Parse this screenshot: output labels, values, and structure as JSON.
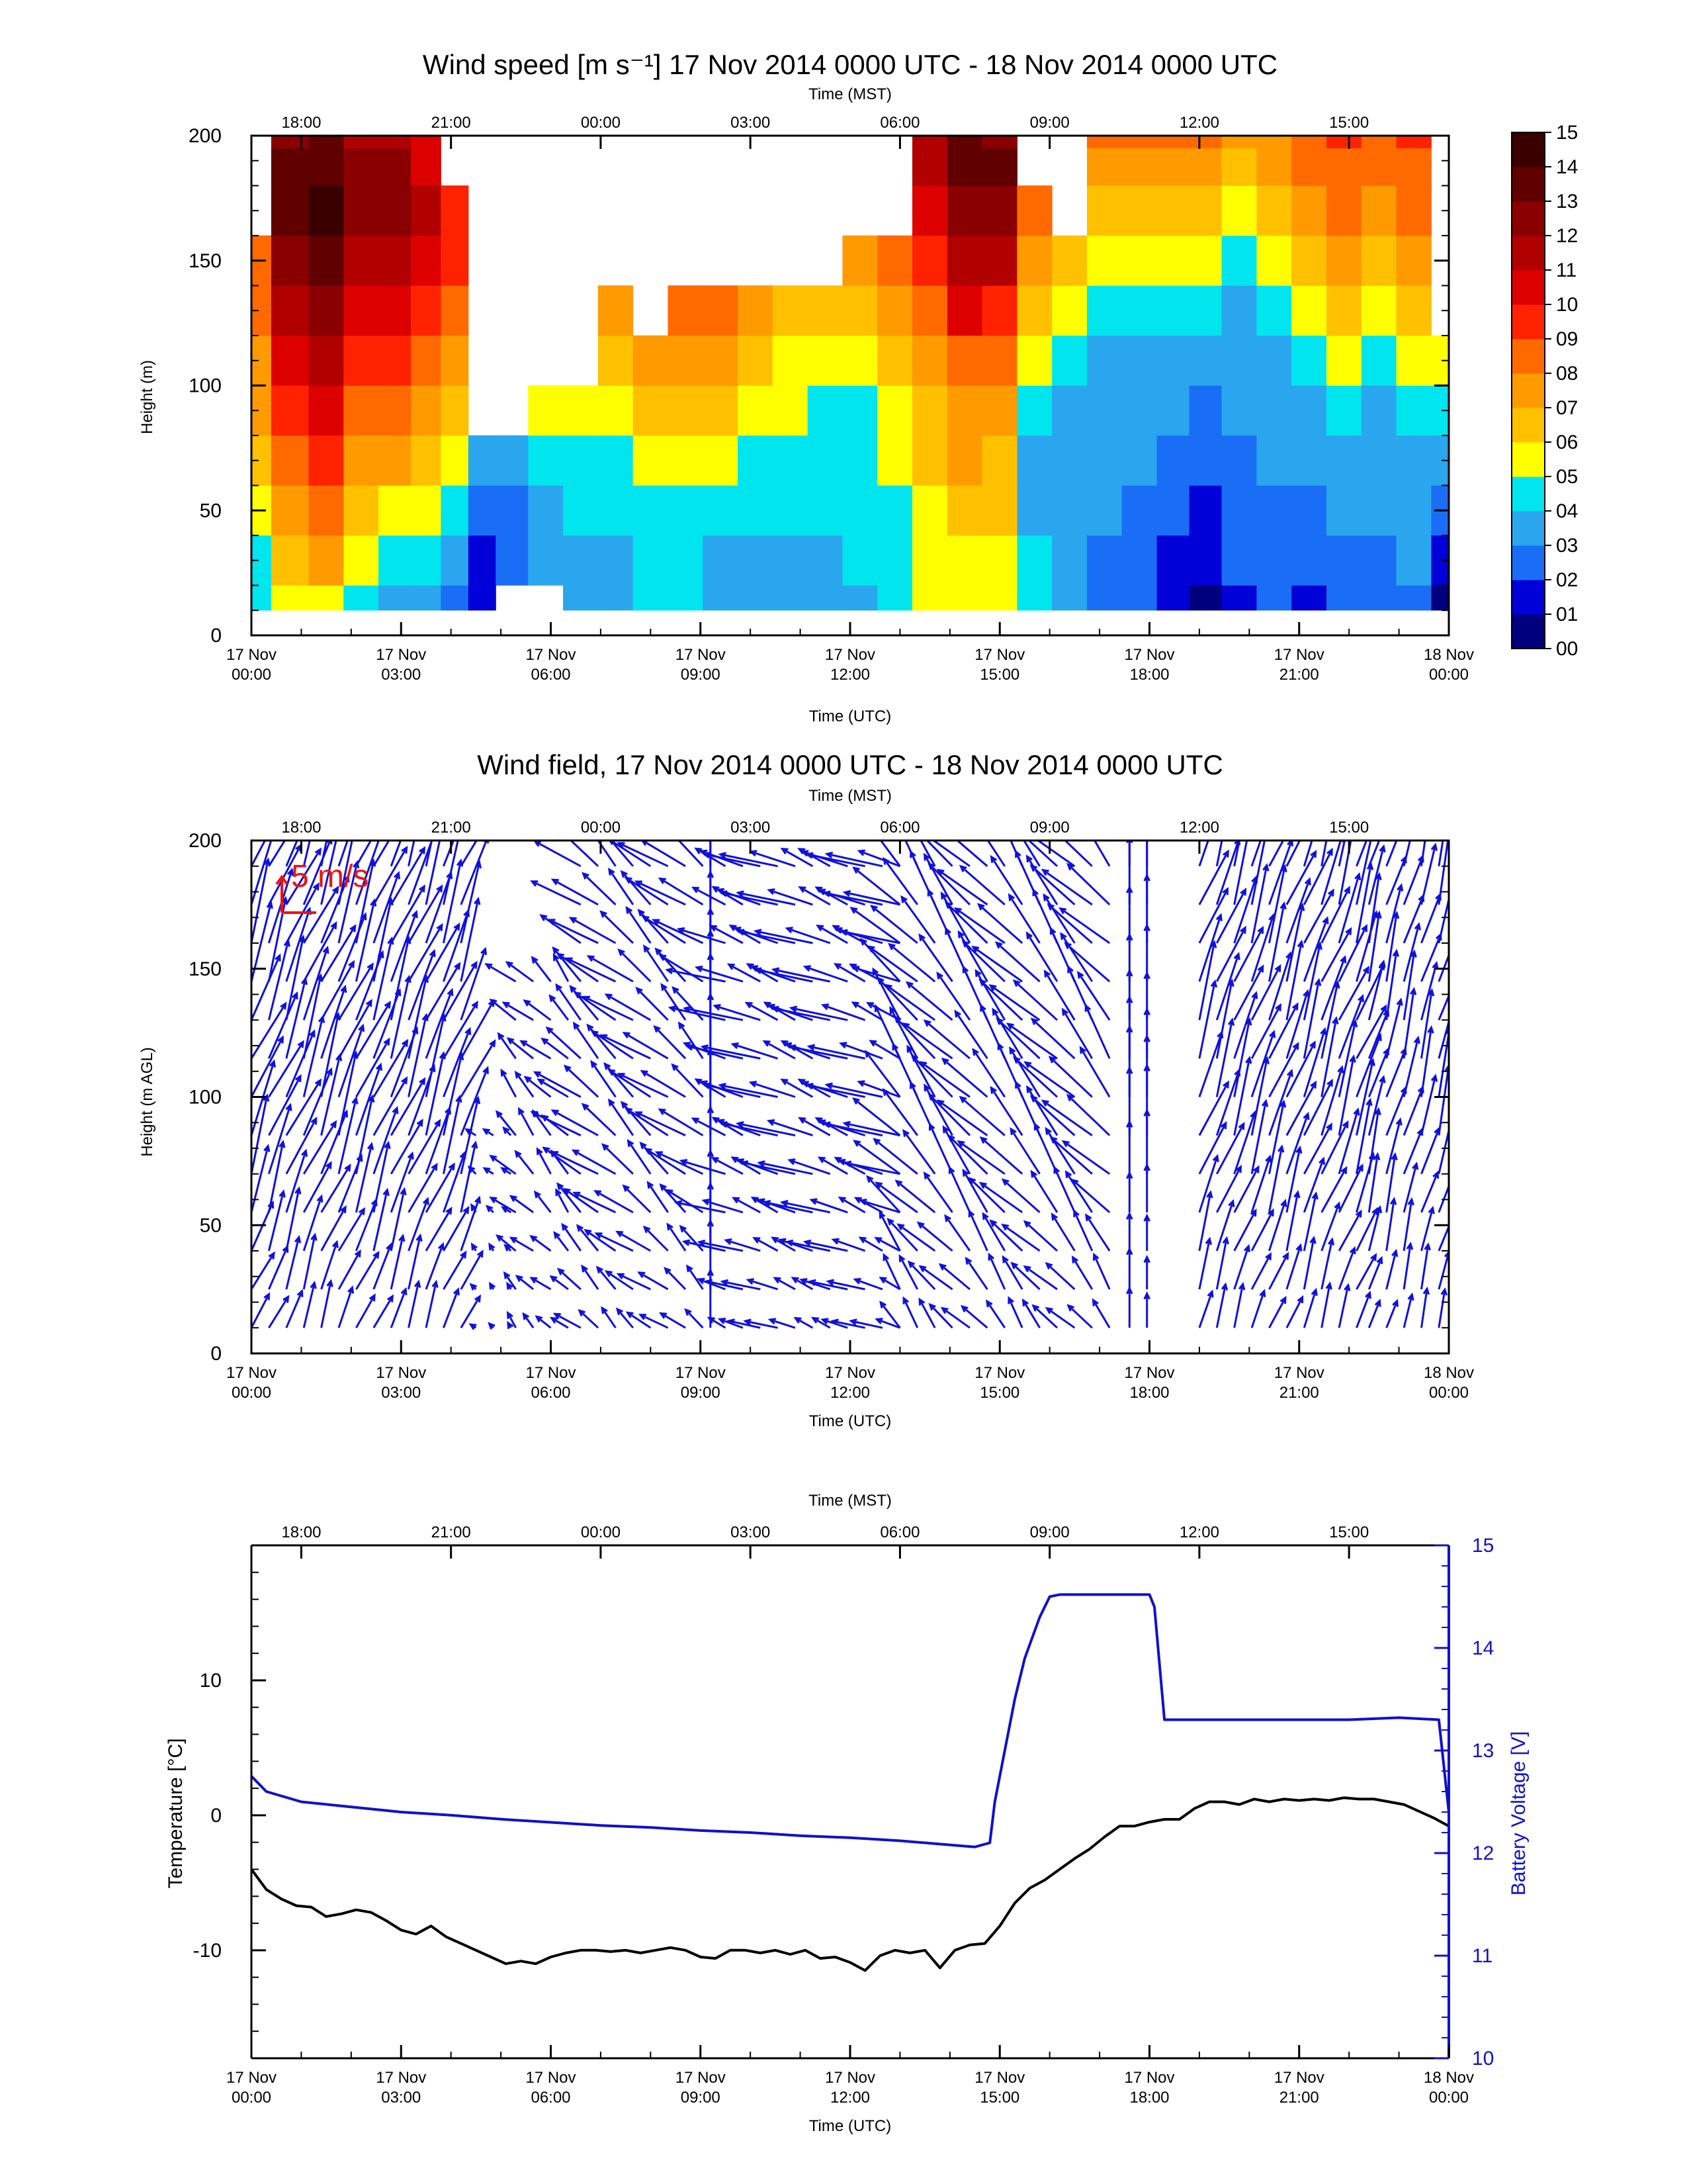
{
  "panels": {
    "speed": {
      "title": "Wind speed [m s⁻¹] 17 Nov 2014 0000 UTC - 18 Nov 2014 0000 UTC",
      "top_axis_label": "Time (MST)",
      "bottom_axis_label": "Time (UTC)",
      "ylabel": "Height (m)"
    },
    "field": {
      "title": "Wind field, 17 Nov 2014 0000 UTC - 18 Nov 2014 0000 UTC",
      "top_axis_label": "Time (MST)",
      "bottom_axis_label": "Time (UTC)",
      "ylabel": "Height (m AGL)",
      "scale_label": "5 m/s"
    },
    "temp": {
      "top_axis_label": "Time (MST)",
      "bottom_axis_label": "Time (UTC)",
      "ylabel_left": "Temperature [°C]",
      "ylabel_right": "Battery Voltage [V]"
    }
  },
  "x_axis": {
    "range_hours_utc": [
      0,
      24
    ],
    "utc_ticks": [
      {
        "h": 0,
        "l1": "17 Nov",
        "l2": "00:00"
      },
      {
        "h": 3,
        "l1": "17 Nov",
        "l2": "03:00"
      },
      {
        "h": 6,
        "l1": "17 Nov",
        "l2": "06:00"
      },
      {
        "h": 9,
        "l1": "17 Nov",
        "l2": "09:00"
      },
      {
        "h": 12,
        "l1": "17 Nov",
        "l2": "12:00"
      },
      {
        "h": 15,
        "l1": "17 Nov",
        "l2": "15:00"
      },
      {
        "h": 18,
        "l1": "17 Nov",
        "l2": "18:00"
      },
      {
        "h": 21,
        "l1": "17 Nov",
        "l2": "21:00"
      },
      {
        "h": 24,
        "l1": "18 Nov",
        "l2": "00:00"
      }
    ],
    "mst_ticks": [
      {
        "h": 1,
        "label": "18:00"
      },
      {
        "h": 4,
        "label": "21:00"
      },
      {
        "h": 7,
        "label": "00:00"
      },
      {
        "h": 10,
        "label": "03:00"
      },
      {
        "h": 13,
        "label": "06:00"
      },
      {
        "h": 16,
        "label": "09:00"
      },
      {
        "h": 19,
        "label": "12:00"
      },
      {
        "h": 22,
        "label": "15:00"
      }
    ]
  },
  "chart_data": [
    {
      "type": "heatmap",
      "panel": "speed",
      "y_ticks": [
        0,
        50,
        100,
        150,
        200
      ],
      "ylim": [
        0,
        200
      ],
      "colorbar": {
        "labels": [
          "00",
          "01",
          "02",
          "03",
          "04",
          "05",
          "06",
          "07",
          "08",
          "09",
          "10",
          "11",
          "12",
          "13",
          "14",
          "15"
        ],
        "colors": [
          "#00007f",
          "#0000d8",
          "#1a6ef5",
          "#2aa6ee",
          "#00e5ee",
          "#ffff00",
          "#ffc000",
          "#ff9a00",
          "#ff6a00",
          "#ff2200",
          "#dd0000",
          "#b00000",
          "#8a0000",
          "#600000",
          "#3a0000"
        ]
      },
      "height_levels_m": [
        10,
        30,
        50,
        70,
        90,
        110,
        130,
        150,
        170,
        190,
        200
      ],
      "columns": [
        {
          "t": 0.0,
          "v": [
            4,
            4,
            5,
            6,
            7,
            7,
            8,
            8,
            null,
            null,
            null
          ]
        },
        {
          "t": 0.8,
          "v": [
            5,
            6,
            7,
            8,
            9,
            10,
            11,
            12,
            13,
            13,
            12
          ]
        },
        {
          "t": 1.5,
          "v": [
            5,
            7,
            8,
            9,
            10,
            11,
            12,
            13,
            14,
            13,
            13
          ]
        },
        {
          "t": 2.2,
          "v": [
            4,
            5,
            6,
            7,
            8,
            9,
            10,
            11,
            12,
            12,
            11
          ]
        },
        {
          "t": 2.9,
          "v": [
            3,
            4,
            5,
            7,
            8,
            9,
            10,
            11,
            12,
            12,
            11
          ]
        },
        {
          "t": 3.5,
          "v": [
            3,
            4,
            5,
            6,
            7,
            8,
            9,
            10,
            11,
            10,
            10
          ]
        },
        {
          "t": 4.1,
          "v": [
            2,
            3,
            4,
            5,
            6,
            7,
            8,
            9,
            9,
            null,
            null
          ]
        },
        {
          "t": 4.6,
          "v": [
            1,
            1,
            2,
            3,
            null,
            null,
            null,
            null,
            null,
            null,
            null
          ]
        },
        {
          "t": 5.2,
          "v": [
            null,
            2,
            2,
            3,
            null,
            null,
            null,
            null,
            null,
            null,
            null
          ]
        },
        {
          "t": 5.9,
          "v": [
            null,
            3,
            3,
            4,
            5,
            null,
            null,
            null,
            null,
            null,
            null
          ]
        },
        {
          "t": 6.6,
          "v": [
            3,
            3,
            4,
            4,
            5,
            null,
            null,
            null,
            null,
            null,
            null
          ]
        },
        {
          "t": 7.3,
          "v": [
            3,
            3,
            4,
            4,
            5,
            6,
            7,
            null,
            null,
            null,
            null
          ]
        },
        {
          "t": 8.0,
          "v": [
            4,
            4,
            4,
            5,
            6,
            7,
            null,
            null,
            null,
            null,
            null
          ]
        },
        {
          "t": 8.7,
          "v": [
            4,
            4,
            4,
            5,
            6,
            7,
            8,
            null,
            null,
            null,
            null
          ]
        },
        {
          "t": 9.4,
          "v": [
            3,
            3,
            4,
            5,
            6,
            7,
            8,
            null,
            null,
            null,
            null
          ]
        },
        {
          "t": 10.1,
          "v": [
            3,
            3,
            4,
            4,
            5,
            6,
            7,
            null,
            null,
            null,
            null
          ]
        },
        {
          "t": 10.8,
          "v": [
            3,
            3,
            4,
            4,
            5,
            5,
            6,
            null,
            null,
            null,
            null
          ]
        },
        {
          "t": 11.5,
          "v": [
            3,
            3,
            4,
            4,
            4,
            5,
            6,
            null,
            null,
            null,
            null
          ]
        },
        {
          "t": 12.2,
          "v": [
            3,
            4,
            4,
            4,
            4,
            5,
            6,
            7,
            null,
            null,
            null
          ]
        },
        {
          "t": 12.9,
          "v": [
            4,
            4,
            4,
            5,
            5,
            6,
            7,
            8,
            null,
            null,
            null
          ]
        },
        {
          "t": 13.6,
          "v": [
            5,
            5,
            5,
            6,
            6,
            7,
            8,
            9,
            10,
            11,
            11
          ]
        },
        {
          "t": 14.3,
          "v": [
            5,
            5,
            6,
            7,
            7,
            8,
            10,
            11,
            12,
            13,
            13
          ]
        },
        {
          "t": 15.0,
          "v": [
            5,
            5,
            6,
            6,
            7,
            8,
            9,
            11,
            12,
            13,
            12
          ]
        },
        {
          "t": 15.7,
          "v": [
            4,
            4,
            3,
            3,
            4,
            5,
            6,
            7,
            8,
            null,
            null
          ]
        },
        {
          "t": 16.4,
          "v": [
            3,
            3,
            3,
            3,
            3,
            4,
            5,
            6,
            null,
            null,
            null
          ]
        },
        {
          "t": 17.1,
          "v": [
            2,
            2,
            3,
            3,
            3,
            3,
            4,
            5,
            6,
            7,
            8
          ]
        },
        {
          "t": 17.8,
          "v": [
            2,
            2,
            2,
            3,
            3,
            3,
            4,
            5,
            6,
            7,
            8
          ]
        },
        {
          "t": 18.5,
          "v": [
            1,
            1,
            2,
            2,
            3,
            3,
            4,
            5,
            6,
            7,
            8
          ]
        },
        {
          "t": 19.1,
          "v": [
            0,
            1,
            1,
            2,
            2,
            3,
            4,
            5,
            6,
            7,
            8
          ]
        },
        {
          "t": 19.8,
          "v": [
            1,
            2,
            2,
            2,
            3,
            3,
            3,
            4,
            5,
            6,
            7
          ]
        },
        {
          "t": 20.5,
          "v": [
            2,
            2,
            2,
            3,
            3,
            3,
            4,
            5,
            6,
            7,
            7
          ]
        },
        {
          "t": 21.2,
          "v": [
            1,
            2,
            2,
            3,
            3,
            4,
            5,
            6,
            7,
            8,
            8
          ]
        },
        {
          "t": 21.9,
          "v": [
            2,
            2,
            3,
            3,
            4,
            5,
            6,
            7,
            8,
            8,
            9
          ]
        },
        {
          "t": 22.6,
          "v": [
            2,
            2,
            3,
            3,
            3,
            4,
            5,
            6,
            7,
            8,
            8
          ]
        },
        {
          "t": 23.3,
          "v": [
            2,
            3,
            3,
            3,
            4,
            5,
            6,
            7,
            8,
            8,
            9
          ]
        },
        {
          "t": 24.0,
          "v": [
            0,
            1,
            2,
            3,
            4,
            5,
            null,
            null,
            null,
            null,
            null
          ]
        }
      ]
    },
    {
      "type": "quiver",
      "panel": "field",
      "y_ticks": [
        0,
        50,
        100,
        150,
        200
      ],
      "ylim": [
        0,
        200
      ],
      "vector_color": "#1010dd",
      "scale_color": "#ee1111",
      "reference_speed_ms": 5,
      "height_levels_m": [
        10,
        25,
        40,
        55,
        70,
        85,
        100,
        115,
        130,
        145,
        160,
        175,
        190,
        200
      ],
      "segments": [
        {
          "t0": 0.0,
          "t1": 4.3,
          "u": 3.5,
          "v": 9.5,
          "hmax": 200
        },
        {
          "t0": 4.5,
          "t1": 5.3,
          "u": -1.0,
          "v": 1.0,
          "hmax": 95
        },
        {
          "t0": 5.3,
          "t1": 6.6,
          "u": -3.0,
          "v": 3.0,
          "hmax": 145
        },
        {
          "t0": 6.6,
          "t1": 9.2,
          "u": -5.0,
          "v": 4.0,
          "hmax": 200
        },
        {
          "t0": 9.2,
          "t1": 9.5,
          "u": 0.0,
          "v": 12.0,
          "hmax": 200
        },
        {
          "t0": 9.5,
          "t1": 13.0,
          "u": -6.0,
          "v": 2.0,
          "hmax": 200
        },
        {
          "t0": 13.0,
          "t1": 17.4,
          "u": -5.0,
          "v": 6.0,
          "hmax": 200
        },
        {
          "t0": 17.6,
          "t1": 18.2,
          "u": 0.0,
          "v": 8.0,
          "hmax": 200
        },
        {
          "t0": 19.0,
          "t1": 22.4,
          "u": 3.0,
          "v": 9.0,
          "hmax": 200
        },
        {
          "t0": 22.4,
          "t1": 24.0,
          "u": 2.0,
          "v": 8.0,
          "hmax": 200
        }
      ]
    },
    {
      "type": "line",
      "panel": "temp",
      "y_ticks_left": [
        -10,
        0,
        10
      ],
      "ylim_left": [
        -18,
        20
      ],
      "y_ticks_right": [
        10,
        11,
        12,
        13,
        14,
        15
      ],
      "ylim_right": [
        10,
        15
      ],
      "series": [
        {
          "name": "Temperature [°C]",
          "axis": "left",
          "color": "#000000",
          "x": [
            0,
            0.3,
            0.6,
            0.9,
            1.2,
            1.5,
            1.8,
            2.1,
            2.4,
            2.7,
            3.0,
            3.3,
            3.6,
            3.9,
            4.2,
            4.5,
            4.8,
            5.1,
            5.4,
            5.7,
            6.0,
            6.3,
            6.6,
            6.9,
            7.2,
            7.5,
            7.8,
            8.1,
            8.4,
            8.7,
            9.0,
            9.3,
            9.6,
            9.9,
            10.2,
            10.5,
            10.8,
            11.1,
            11.4,
            11.7,
            12.0,
            12.3,
            12.6,
            12.9,
            13.2,
            13.5,
            13.8,
            14.1,
            14.4,
            14.7,
            15.0,
            15.3,
            15.6,
            15.9,
            16.2,
            16.5,
            16.8,
            17.1,
            17.4,
            17.7,
            18.0,
            18.3,
            18.6,
            18.9,
            19.2,
            19.5,
            19.8,
            20.1,
            20.4,
            20.7,
            21.0,
            21.3,
            21.6,
            21.9,
            22.2,
            22.5,
            22.8,
            23.1,
            23.4,
            23.7,
            24.0
          ],
          "y": [
            -4,
            -5.5,
            -6.2,
            -6.7,
            -6.8,
            -7.5,
            -7.3,
            -7.0,
            -7.2,
            -7.8,
            -8.5,
            -8.8,
            -8.2,
            -9.0,
            -9.5,
            -10.0,
            -10.5,
            -11.0,
            -10.8,
            -11.0,
            -10.5,
            -10.2,
            -10.0,
            -10.0,
            -10.1,
            -10.0,
            -10.2,
            -10.0,
            -9.8,
            -10.0,
            -10.5,
            -10.6,
            -10.0,
            -10.0,
            -10.2,
            -10.0,
            -10.3,
            -10.0,
            -10.6,
            -10.5,
            -10.9,
            -11.5,
            -10.4,
            -10.0,
            -10.2,
            -10.0,
            -11.3,
            -10.0,
            -9.6,
            -9.5,
            -8.2,
            -6.5,
            -5.4,
            -4.8,
            -4.0,
            -3.2,
            -2.5,
            -1.6,
            -0.8,
            -0.8,
            -0.5,
            -0.3,
            -0.3,
            0.5,
            1.0,
            1.0,
            0.8,
            1.2,
            1.0,
            1.2,
            1.1,
            1.2,
            1.1,
            1.3,
            1.2,
            1.2,
            1.0,
            0.8,
            0.3,
            -0.2,
            -0.8
          ]
        },
        {
          "name": "Battery Voltage [V]",
          "axis": "right",
          "color": "#1010cc",
          "x": [
            0,
            0.3,
            1,
            2,
            3,
            4,
            5,
            6,
            7,
            8,
            9,
            10,
            11,
            12,
            13,
            14,
            14.5,
            14.8,
            14.9,
            15.1,
            15.3,
            15.5,
            15.8,
            16.0,
            16.2,
            16.5,
            17.0,
            17.5,
            18.0,
            18.1,
            18.3,
            19,
            20,
            21,
            22,
            23,
            23.8,
            24.0
          ],
          "y": [
            12.75,
            12.6,
            12.5,
            12.45,
            12.4,
            12.37,
            12.33,
            12.3,
            12.27,
            12.25,
            12.22,
            12.2,
            12.17,
            12.15,
            12.12,
            12.08,
            12.06,
            12.1,
            12.5,
            13.0,
            13.5,
            13.9,
            14.3,
            14.5,
            14.52,
            14.52,
            14.52,
            14.52,
            14.52,
            14.4,
            13.3,
            13.3,
            13.3,
            13.3,
            13.3,
            13.32,
            13.3,
            12.4
          ]
        }
      ]
    }
  ]
}
